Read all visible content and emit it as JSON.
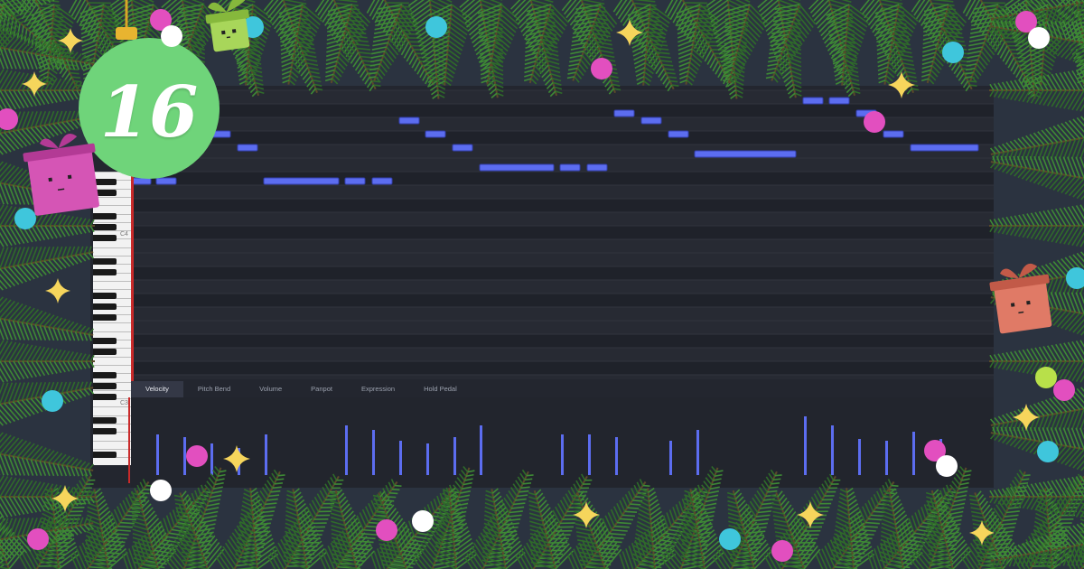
{
  "badge": {
    "day": "16"
  },
  "keyboard": {
    "labels": [
      "C4",
      "C3"
    ]
  },
  "tabs": [
    {
      "label": "Velocity",
      "active": true
    },
    {
      "label": "Pitch Bend",
      "active": false
    },
    {
      "label": "Volume",
      "active": false
    },
    {
      "label": "Panpot",
      "active": false
    },
    {
      "label": "Expression",
      "active": false
    },
    {
      "label": "Hold Pedal",
      "active": false
    }
  ],
  "colors": {
    "note": "#5c6df0",
    "note_border": "#3340b0",
    "velocity_bar": "#5c6df0",
    "playhead": "#c92a2a",
    "badge": "#6fd47a",
    "pine": "#2f6b2a"
  },
  "icons": [
    "christmas-ornament-icon",
    "gift-box-icon",
    "star-sparkle-icon"
  ]
}
